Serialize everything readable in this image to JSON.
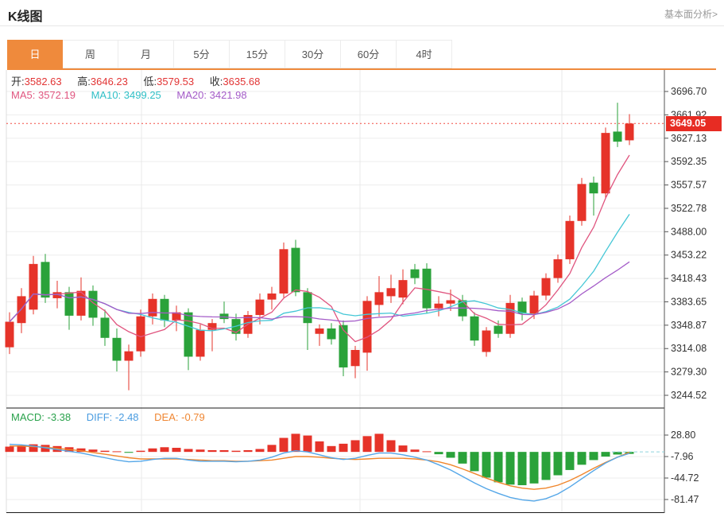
{
  "page": {
    "title": "K线图",
    "link_top_right": "基本面分析>"
  },
  "tabs": {
    "items": [
      "日",
      "周",
      "月",
      "5分",
      "15分",
      "30分",
      "60分",
      "4时"
    ],
    "active_index": 0
  },
  "ohlc": {
    "open_label": "开:",
    "open": "3582.63",
    "high_label": "高:",
    "high": "3646.23",
    "low_label": "低:",
    "low": "3579.53",
    "close_label": "收:",
    "close": "3635.68"
  },
  "ma": {
    "ma5_label": "MA5:",
    "ma5": "3572.19",
    "ma10_label": "MA10:",
    "ma10": "3499.25",
    "ma20_label": "MA20:",
    "ma20": "3421.98"
  },
  "macd_header": {
    "macd_label": "MACD:",
    "macd": "-3.38",
    "diff_label": "DIFF:",
    "diff": "-2.48",
    "dea_label": "DEA:",
    "dea": "-0.79"
  },
  "price_marker": {
    "value": "3649.05"
  },
  "colors": {
    "accent_orange": "#ef8a3c",
    "up_red": "#e63329",
    "down_green": "#2aa23a",
    "ma5": "#e0557f",
    "ma10": "#45c7d6",
    "ma20": "#a45bc8",
    "diff_line": "#55a7e8",
    "dea_line": "#f0862c",
    "price_badge_bg": "#e72c23",
    "dotted_price_line": "#f34b42",
    "value_red": "#e23535",
    "grid": "#ededed",
    "axis": "#555555",
    "zero_dash": "#8fd3dd"
  },
  "chart_data": {
    "type": "candlestick_with_macd",
    "title": "K线图",
    "x_axis_labels": [],
    "y_axis_labels": [
      "3696.70",
      "3661.92",
      "3627.13",
      "3592.35",
      "3557.57",
      "3522.78",
      "3488.00",
      "3453.22",
      "3418.43",
      "3383.65",
      "3348.87",
      "3314.08",
      "3279.30",
      "3244.52"
    ],
    "y_top_value": 3696.7,
    "y_step_value": 34.7829,
    "macd_axis_labels": [
      "28.80",
      "-7.96",
      "-44.72",
      "-81.47"
    ],
    "macd_top_value": 28.8,
    "macd_step_value": 36.76,
    "current_price": 3649.05,
    "grid": true,
    "candles_ohlc": [
      [
        3316,
        3368,
        3306,
        3354
      ],
      [
        3352,
        3404,
        3337,
        3392
      ],
      [
        3372,
        3452,
        3365,
        3440
      ],
      [
        3443,
        3455,
        3382,
        3390
      ],
      [
        3389,
        3415,
        3374,
        3398
      ],
      [
        3398,
        3406,
        3342,
        3363
      ],
      [
        3363,
        3420,
        3356,
        3400
      ],
      [
        3400,
        3408,
        3348,
        3360
      ],
      [
        3360,
        3372,
        3318,
        3330
      ],
      [
        3330,
        3344,
        3280,
        3296
      ],
      [
        3296,
        3320,
        3252,
        3310
      ],
      [
        3310,
        3372,
        3302,
        3362
      ],
      [
        3362,
        3396,
        3350,
        3388
      ],
      [
        3388,
        3394,
        3346,
        3356
      ],
      [
        3356,
        3378,
        3340,
        3368
      ],
      [
        3368,
        3374,
        3282,
        3302
      ],
      [
        3302,
        3350,
        3296,
        3342
      ],
      [
        3342,
        3358,
        3310,
        3352
      ],
      [
        3366,
        3384,
        3352,
        3358
      ],
      [
        3358,
        3366,
        3326,
        3336
      ],
      [
        3336,
        3370,
        3330,
        3364
      ],
      [
        3364,
        3396,
        3350,
        3387
      ],
      [
        3387,
        3406,
        3372,
        3396
      ],
      [
        3396,
        3472,
        3390,
        3462
      ],
      [
        3464,
        3476,
        3392,
        3398
      ],
      [
        3398,
        3404,
        3312,
        3352
      ],
      [
        3336,
        3350,
        3318,
        3344
      ],
      [
        3344,
        3352,
        3320,
        3328
      ],
      [
        3349,
        3356,
        3273,
        3286
      ],
      [
        3288,
        3318,
        3270,
        3312
      ],
      [
        3308,
        3392,
        3281,
        3385
      ],
      [
        3379,
        3422,
        3362,
        3398
      ],
      [
        3392,
        3424,
        3382,
        3404
      ],
      [
        3390,
        3432,
        3380,
        3416
      ],
      [
        3432,
        3440,
        3410,
        3419
      ],
      [
        3433,
        3441,
        3367,
        3374
      ],
      [
        3374,
        3392,
        3362,
        3381
      ],
      [
        3381,
        3402,
        3370,
        3386
      ],
      [
        3386,
        3394,
        3355,
        3362
      ],
      [
        3362,
        3368,
        3318,
        3326
      ],
      [
        3309,
        3346,
        3302,
        3341
      ],
      [
        3348,
        3356,
        3330,
        3336
      ],
      [
        3336,
        3394,
        3330,
        3382
      ],
      [
        3384,
        3390,
        3356,
        3366
      ],
      [
        3366,
        3400,
        3358,
        3393
      ],
      [
        3393,
        3426,
        3386,
        3419
      ],
      [
        3419,
        3454,
        3412,
        3447
      ],
      [
        3447,
        3512,
        3440,
        3504
      ],
      [
        3504,
        3568,
        3497,
        3559
      ],
      [
        3561,
        3570,
        3512,
        3545
      ],
      [
        3545,
        3643,
        3538,
        3635
      ],
      [
        3637,
        3680,
        3614,
        3622
      ],
      [
        3624,
        3663,
        3617,
        3649
      ]
    ],
    "ma_periods": [
      5,
      10,
      20
    ],
    "macd": {
      "hist": [
        9,
        11,
        13,
        12,
        10,
        8,
        6,
        4,
        2,
        1,
        -1.5,
        2,
        6,
        8,
        7,
        5,
        4,
        3,
        3,
        2,
        3,
        5,
        12,
        24,
        31,
        28,
        18,
        10,
        14,
        20,
        27,
        31,
        20,
        11,
        4,
        1,
        -4,
        -10,
        -20,
        -33,
        -44,
        -52,
        -56,
        -57,
        -54,
        -48,
        -40,
        -31,
        -22,
        -14,
        -8,
        -4.5,
        -3.38
      ],
      "diff": [
        13,
        12,
        10,
        7,
        4,
        1,
        -2,
        -6,
        -10,
        -14,
        -17,
        -16,
        -13,
        -11,
        -11,
        -14,
        -16,
        -16,
        -16,
        -17,
        -16,
        -14,
        -9,
        -2,
        2,
        0,
        -5,
        -10,
        -13,
        -11,
        -6,
        -2,
        -2,
        -5,
        -9,
        -14,
        -22,
        -31,
        -42,
        -53,
        -63,
        -71,
        -78,
        -82,
        -84,
        -80,
        -72,
        -60,
        -46,
        -32,
        -19,
        -9,
        -2.48
      ],
      "dea": [
        10,
        10,
        9,
        8,
        6,
        4,
        2,
        -1,
        -4,
        -7,
        -10,
        -12,
        -12,
        -12,
        -12,
        -13,
        -14,
        -15,
        -15,
        -16,
        -16,
        -15,
        -14,
        -11,
        -8,
        -8,
        -9,
        -11,
        -12,
        -13,
        -12,
        -11,
        -11,
        -11,
        -12,
        -14,
        -17,
        -22,
        -29,
        -37,
        -45,
        -52,
        -58,
        -62,
        -64,
        -62,
        -57,
        -49,
        -39,
        -28,
        -18,
        -9,
        -0.79
      ]
    }
  }
}
